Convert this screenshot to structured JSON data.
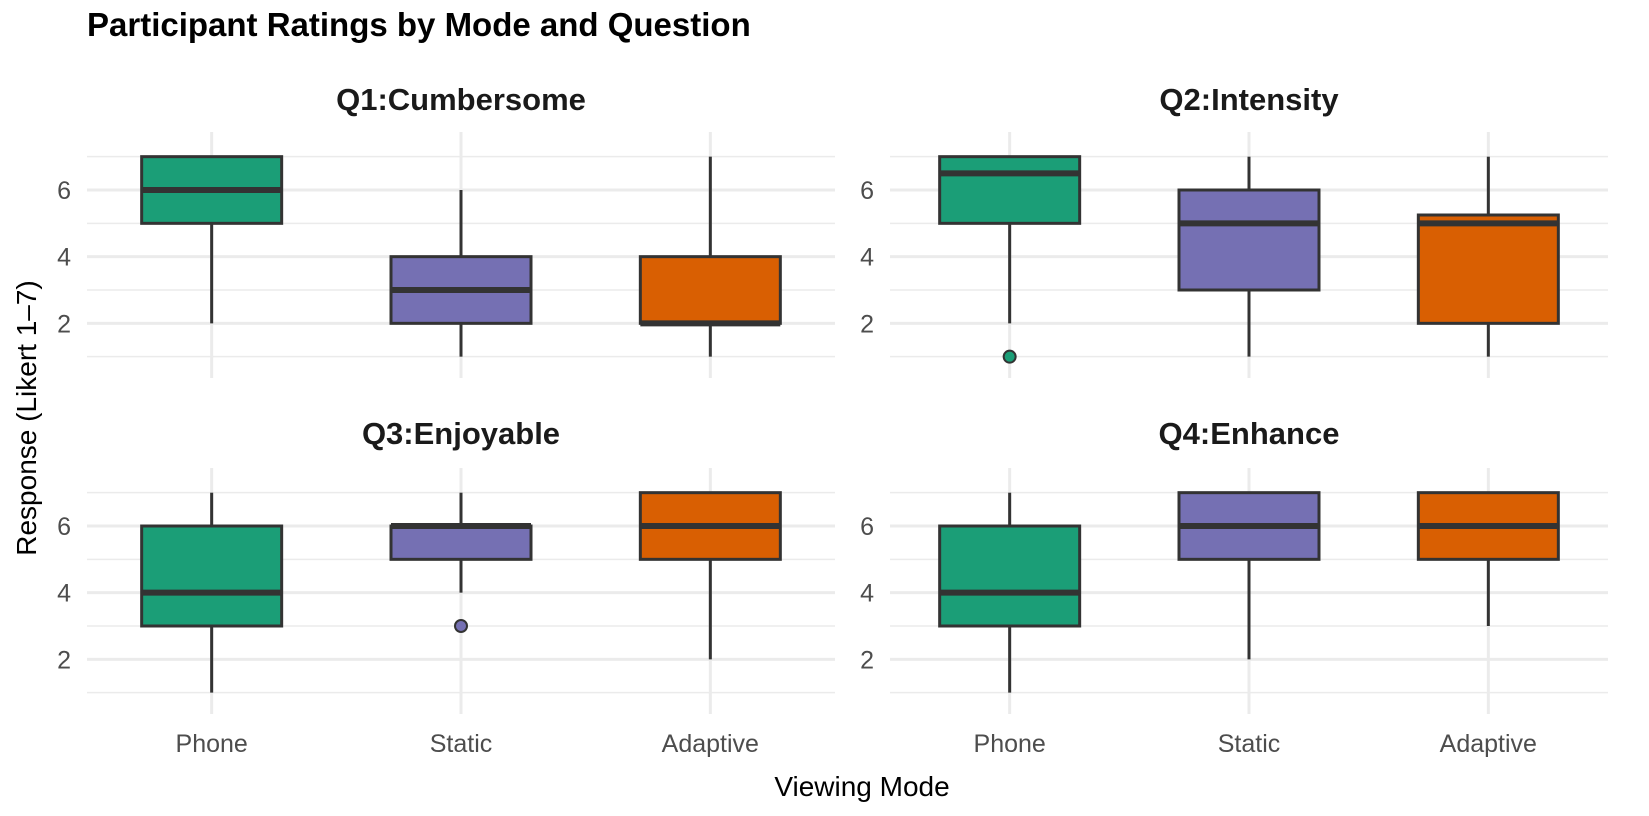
{
  "chart_data": {
    "type": "boxplot",
    "title": "Participant Ratings by Mode and Question",
    "xlabel": "Viewing Mode",
    "ylabel": "Response (Likert 1–7)",
    "categories": [
      "Phone",
      "Static",
      "Adaptive"
    ],
    "colors": {
      "Phone": "#1b9e77",
      "Static": "#7570b3",
      "Adaptive": "#d95f02"
    },
    "ylim": [
      0.6,
      7.5
    ],
    "yticks": [
      2,
      4,
      6
    ],
    "grid": true,
    "panels": [
      {
        "title": "Q1:Cumbersome",
        "boxes": [
          {
            "category": "Phone",
            "min": 2,
            "q1": 5,
            "median": 6,
            "q3": 7,
            "max": 7,
            "outliers": []
          },
          {
            "category": "Static",
            "min": 1,
            "q1": 2,
            "median": 3,
            "q3": 4,
            "max": 6,
            "outliers": []
          },
          {
            "category": "Adaptive",
            "min": 1,
            "q1": 2,
            "median": 2,
            "q3": 4,
            "max": 7,
            "outliers": []
          }
        ]
      },
      {
        "title": "Q2:Intensity",
        "boxes": [
          {
            "category": "Phone",
            "min": 2,
            "q1": 5,
            "median": 6.5,
            "q3": 7,
            "max": 7,
            "outliers": [
              1
            ]
          },
          {
            "category": "Static",
            "min": 1,
            "q1": 3,
            "median": 5,
            "q3": 6,
            "max": 7,
            "outliers": []
          },
          {
            "category": "Adaptive",
            "min": 1,
            "q1": 2,
            "median": 5,
            "q3": 5.25,
            "max": 7,
            "outliers": []
          }
        ]
      },
      {
        "title": "Q3:Enjoyable",
        "boxes": [
          {
            "category": "Phone",
            "min": 1,
            "q1": 3,
            "median": 4,
            "q3": 6,
            "max": 7,
            "outliers": []
          },
          {
            "category": "Static",
            "min": 4,
            "q1": 5,
            "median": 6,
            "q3": 6,
            "max": 7,
            "outliers": [
              3
            ]
          },
          {
            "category": "Adaptive",
            "min": 2,
            "q1": 5,
            "median": 6,
            "q3": 7,
            "max": 7,
            "outliers": []
          }
        ]
      },
      {
        "title": "Q4:Enhance",
        "boxes": [
          {
            "category": "Phone",
            "min": 1,
            "q1": 3,
            "median": 4,
            "q3": 6,
            "max": 7,
            "outliers": []
          },
          {
            "category": "Static",
            "min": 2,
            "q1": 5,
            "median": 6,
            "q3": 7,
            "max": 7,
            "outliers": []
          },
          {
            "category": "Adaptive",
            "min": 3,
            "q1": 5,
            "median": 6,
            "q3": 7,
            "max": 7,
            "outliers": []
          }
        ]
      }
    ]
  }
}
